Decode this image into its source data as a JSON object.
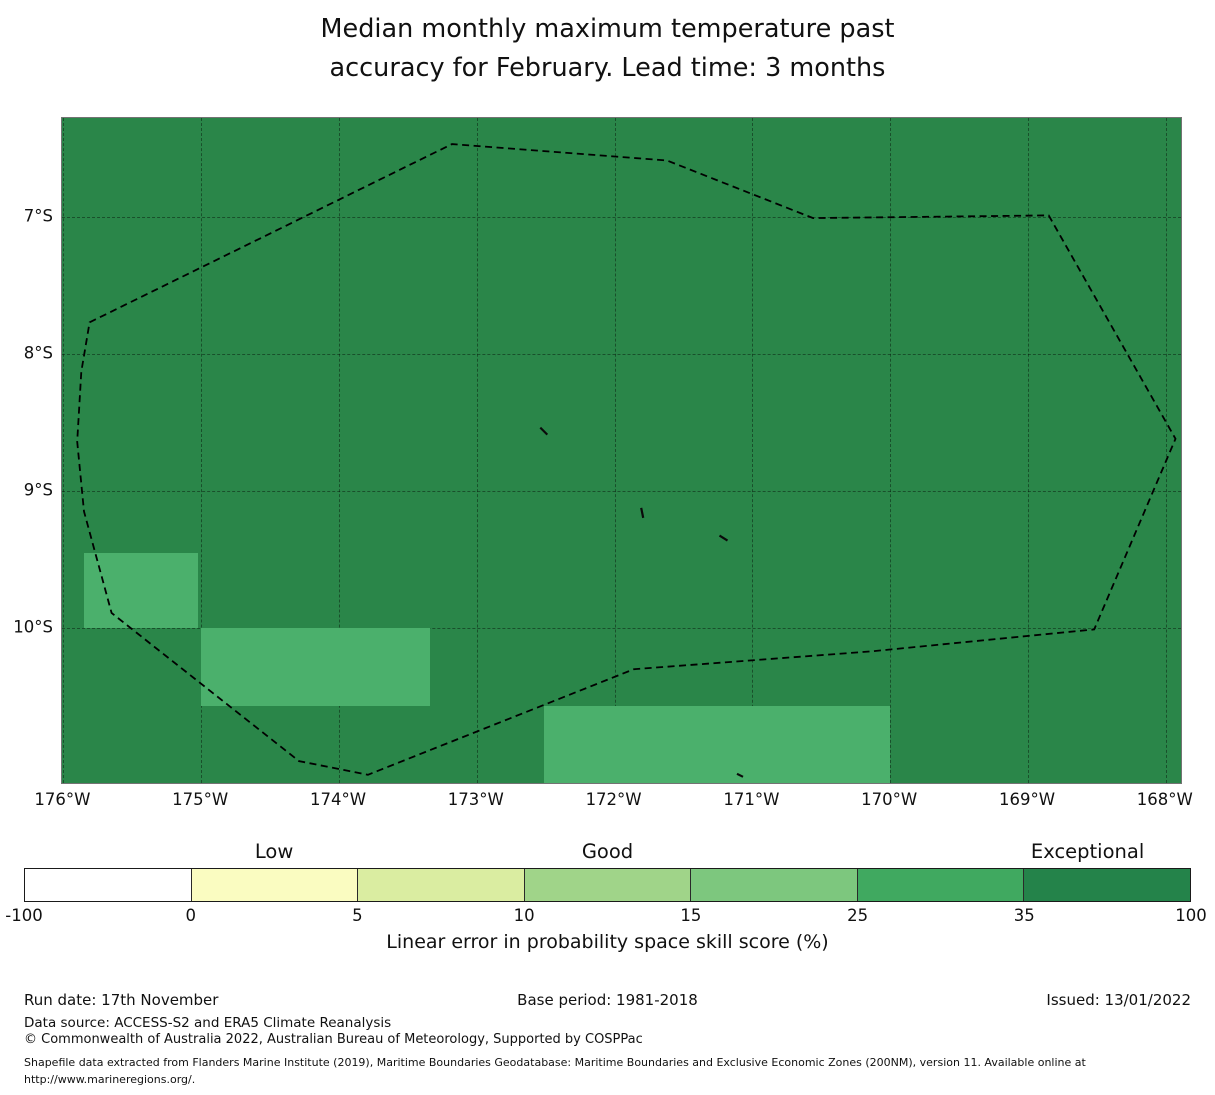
{
  "title": {
    "line1": "Median monthly maximum temperature past",
    "line2": "accuracy for February. Lead time: 3 months"
  },
  "colors": {
    "map_background": "#2a8649",
    "highlight_cell": "#4bb06c",
    "boundary_line": "#000000",
    "grid_line": "rgba(0,0,0,0.40)"
  },
  "chart_data": {
    "type": "heatmap",
    "title": "Median monthly maximum temperature past accuracy for February. Lead time: 3 months",
    "x_axis": {
      "tick_labels": [
        "176°W",
        "175°W",
        "174°W",
        "173°W",
        "172°W",
        "171°W",
        "170°W",
        "169°W",
        "168°W"
      ],
      "tick_values_degW": [
        176,
        175,
        174,
        173,
        172,
        171,
        170,
        169,
        168
      ],
      "range_degW": [
        176.01,
        167.89
      ],
      "grid": true
    },
    "y_axis": {
      "tick_labels": [
        "7°S",
        "8°S",
        "9°S",
        "10°S"
      ],
      "tick_values_degS": [
        7,
        8,
        9,
        10
      ],
      "range_degS": [
        6.28,
        11.13
      ],
      "grid": true
    },
    "background_skill_band": "35-100 (Exceptional)",
    "cells": [
      {
        "skill_band": "25-35",
        "lonW": [
          175.85,
          175.02
        ],
        "latS": [
          9.45,
          10.0
        ]
      },
      {
        "skill_band": "25-35",
        "lonW": [
          175.0,
          173.34
        ],
        "latS": [
          10.0,
          10.57
        ]
      },
      {
        "skill_band": "25-35",
        "lonW": [
          172.51,
          170.0
        ],
        "latS": [
          10.57,
          11.13
        ]
      }
    ],
    "eez_boundary_degrees": [
      [
        175.81,
        7.77
      ],
      [
        173.18,
        6.47
      ],
      [
        171.62,
        6.59
      ],
      [
        170.56,
        7.01
      ],
      [
        168.85,
        6.99
      ],
      [
        167.93,
        8.62
      ],
      [
        168.52,
        10.01
      ],
      [
        170.14,
        10.17
      ],
      [
        171.86,
        10.3
      ],
      [
        173.79,
        11.07
      ],
      [
        174.29,
        10.97
      ],
      [
        175.65,
        9.89
      ],
      [
        175.85,
        9.15
      ],
      [
        175.9,
        8.64
      ],
      [
        175.87,
        8.13
      ]
    ],
    "islands_degrees": [
      [
        172.51,
        8.56
      ],
      [
        171.8,
        9.16
      ],
      [
        171.21,
        9.34
      ],
      [
        171.09,
        11.07
      ]
    ],
    "colorbar": {
      "bin_labels": [
        "-100",
        "0",
        "5",
        "10",
        "15",
        "25",
        "35",
        "100"
      ],
      "segment_colors": [
        "#ffffff",
        "#fafcc1",
        "#daeda1",
        "#a0d489",
        "#7dc77e",
        "#40a960",
        "#24834a"
      ],
      "band_labels": [
        {
          "text": "Low",
          "segment_center": 1.5
        },
        {
          "text": "Good",
          "segment_center": 3.5
        },
        {
          "text": "Exceptional",
          "segment_center": 6.38
        }
      ],
      "caption": "Linear error in probability space skill score (%)"
    }
  },
  "footer": {
    "run_date": "Run date: 17th November",
    "base_period": "Base period: 1981-2018",
    "issued": "Issued: 13/01/2022",
    "data_source": "Data source: ACCESS-S2 and ERA5 Climate Reanalysis",
    "copyright": "© Commonwealth of Australia 2022, Australian Bureau of Meteorology, Supported by COSPPac",
    "shapefile_note": "Shapefile data extracted from Flanders Marine Institute (2019), Maritime Boundaries Geodatabase: Maritime Boundaries and Exclusive Economic Zones (200NM), version 11. Available online at http://www.marineregions.org/."
  }
}
